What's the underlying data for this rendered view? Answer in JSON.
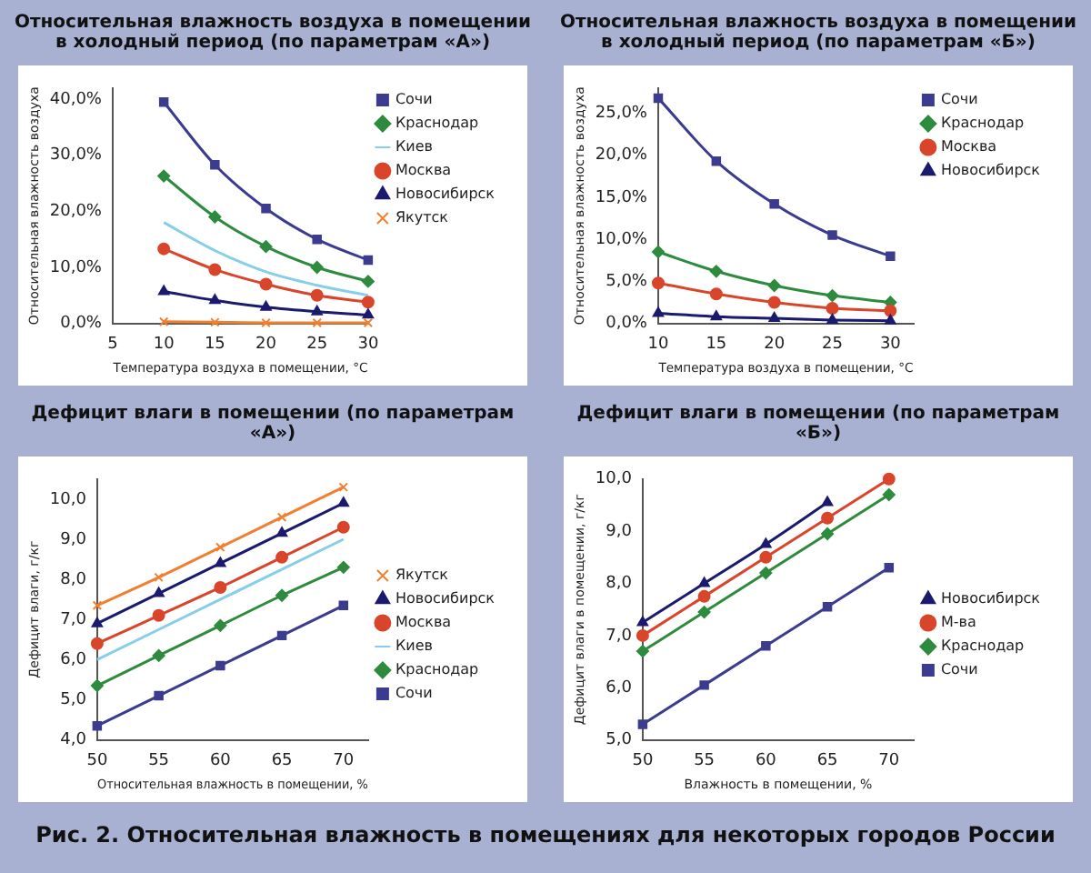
{
  "chart_data": [
    {
      "type": "line",
      "title": "Относительная влажность воздуха в помещении в холодный период (по параметрам «А»)",
      "xlabel": "Температура воздуха в помещении, °С",
      "ylabel": "Относительная влажность воздуха",
      "x": [
        10,
        15,
        20,
        25,
        30
      ],
      "xlim": [
        5,
        30
      ],
      "xticks": [
        5,
        10,
        15,
        20,
        25,
        30
      ],
      "ylim": [
        0,
        42
      ],
      "yticks": [
        {
          "value": 0,
          "label": "0,0%"
        },
        {
          "value": 10,
          "label": "10,0%"
        },
        {
          "value": 20,
          "label": "20,0%"
        },
        {
          "value": 30,
          "label": "30,0%"
        },
        {
          "value": 40,
          "label": "40,0%"
        }
      ],
      "legend": "top right",
      "series": [
        {
          "name": "Сочи",
          "color": "#3b3b8f",
          "marker": "square",
          "values": [
            39.5,
            28.3,
            20.5,
            15,
            11.3
          ]
        },
        {
          "name": "Краснодар",
          "color": "#2e8b3e",
          "marker": "diamond",
          "values": [
            26.3,
            19,
            13.7,
            10,
            7.5
          ]
        },
        {
          "name": "Киев",
          "color": "#87cee8",
          "marker": "none",
          "values": [
            18,
            13,
            9.2,
            6.8,
            5
          ]
        },
        {
          "name": "Москва",
          "color": "#d9452b",
          "marker": "circle",
          "values": [
            13.3,
            9.6,
            7,
            5,
            3.8
          ]
        },
        {
          "name": "Новосибирск",
          "color": "#1a1a6e",
          "marker": "triangle",
          "values": [
            5.7,
            4.1,
            2.9,
            2.1,
            1.5
          ]
        },
        {
          "name": "Якутск",
          "color": "#f08030",
          "marker": "cross",
          "values": [
            0.3,
            0.2,
            0.1,
            0.1,
            0.1
          ]
        }
      ]
    },
    {
      "type": "line",
      "title": "Относительная влажность воздуха в помещении в холодный период (по параметрам «Б»)",
      "xlabel": "Температура воздуха в помещении, °С",
      "ylabel": "Относительная влажность воздуха",
      "x": [
        10,
        15,
        20,
        25,
        30
      ],
      "xlim": [
        10,
        32
      ],
      "xticks": [
        10,
        15,
        20,
        25,
        30
      ],
      "ylim": [
        0,
        28
      ],
      "yticks": [
        {
          "value": 0,
          "label": "0,0%"
        },
        {
          "value": 5,
          "label": "5,0%"
        },
        {
          "value": 10,
          "label": "10,0%"
        },
        {
          "value": 15,
          "label": "15,0%"
        },
        {
          "value": 20,
          "label": "20,0%"
        },
        {
          "value": 25,
          "label": "25,0%"
        }
      ],
      "legend": "top right",
      "series": [
        {
          "name": "Сочи",
          "color": "#3b3b8f",
          "marker": "square",
          "values": [
            26.8,
            19.3,
            14.2,
            10.5,
            8
          ]
        },
        {
          "name": "Краснодар",
          "color": "#2e8b3e",
          "marker": "diamond",
          "values": [
            8.5,
            6.2,
            4.5,
            3.3,
            2.5
          ]
        },
        {
          "name": "Москва",
          "color": "#d9452b",
          "marker": "circle",
          "values": [
            4.8,
            3.5,
            2.5,
            1.8,
            1.5
          ]
        },
        {
          "name": "Новосибирск",
          "color": "#1a1a6e",
          "marker": "triangle",
          "values": [
            1.2,
            0.8,
            0.6,
            0.4,
            0.3
          ]
        }
      ]
    },
    {
      "type": "line",
      "title": "Дефицит влаги в помещении (по параметрам «А»)",
      "xlabel": "Относительная влажность в помещении, %",
      "ylabel": "Дефицит влаги, г/кг",
      "x": [
        50,
        55,
        60,
        65,
        70
      ],
      "xlim": [
        50,
        72
      ],
      "xticks": [
        50,
        55,
        60,
        65,
        70
      ],
      "ylim": [
        4,
        10.5
      ],
      "yticks": [
        {
          "value": 4,
          "label": "4,0"
        },
        {
          "value": 5,
          "label": "5,0"
        },
        {
          "value": 6,
          "label": "6,0"
        },
        {
          "value": 7,
          "label": "7,0"
        },
        {
          "value": 8,
          "label": "8,0"
        },
        {
          "value": 9,
          "label": "9,0"
        },
        {
          "value": 10,
          "label": "10,0"
        }
      ],
      "legend": "right",
      "series": [
        {
          "name": "Якутск",
          "color": "#f08030",
          "marker": "cross",
          "values": [
            7.35,
            8.05,
            8.8,
            9.55,
            10.3
          ]
        },
        {
          "name": "Новосибирск",
          "color": "#1a1a6e",
          "marker": "triangle",
          "values": [
            6.9,
            7.65,
            8.4,
            9.15,
            9.9
          ]
        },
        {
          "name": "Москва",
          "color": "#d9452b",
          "marker": "circle",
          "values": [
            6.4,
            7.1,
            7.8,
            8.55,
            9.3
          ]
        },
        {
          "name": "Киев",
          "color": "#87cee8",
          "marker": "none",
          "values": [
            6.0,
            6.75,
            7.5,
            8.25,
            9.0
          ]
        },
        {
          "name": "Краснодар",
          "color": "#2e8b3e",
          "marker": "diamond",
          "values": [
            5.35,
            6.1,
            6.85,
            7.6,
            8.3
          ]
        },
        {
          "name": "Сочи",
          "color": "#3b3b8f",
          "marker": "square",
          "values": [
            4.35,
            5.1,
            5.85,
            6.6,
            7.35
          ]
        }
      ]
    },
    {
      "type": "line",
      "title": "Дефицит влаги в помещении (по параметрам «Б»)",
      "xlabel": "Влажность в помещении, %",
      "ylabel": "Дефицит влаги в помещении, г/кг",
      "x": [
        50,
        55,
        60,
        65,
        70
      ],
      "xlim": [
        50,
        72
      ],
      "xticks": [
        50,
        55,
        60,
        65,
        70
      ],
      "ylim": [
        5,
        10
      ],
      "yticks": [
        {
          "value": 5,
          "label": "5,0"
        },
        {
          "value": 6,
          "label": "6,0"
        },
        {
          "value": 7,
          "label": "7,0"
        },
        {
          "value": 8,
          "label": "8,0"
        },
        {
          "value": 9,
          "label": "9,0"
        },
        {
          "value": 10,
          "label": "10,0"
        }
      ],
      "legend": "right",
      "annotations": [
        "Рис. 2. Относительная влажность в помещениях для некоторых городов России"
      ],
      "series": [
        {
          "name": "Новосибирск",
          "color": "#1a1a6e",
          "marker": "triangle",
          "values": [
            7.25,
            8.0,
            8.75,
            9.55,
            null
          ]
        },
        {
          "name": "М-ва",
          "color": "#d9452b",
          "marker": "circle",
          "values": [
            7.0,
            7.75,
            8.5,
            9.25,
            10.0
          ]
        },
        {
          "name": "Краснодар",
          "color": "#2e8b3e",
          "marker": "diamond",
          "values": [
            6.7,
            7.45,
            8.2,
            8.95,
            9.7
          ]
        },
        {
          "name": "Сочи",
          "color": "#3b3b8f",
          "marker": "square",
          "values": [
            5.3,
            6.05,
            6.8,
            7.55,
            8.3
          ]
        }
      ]
    }
  ]
}
